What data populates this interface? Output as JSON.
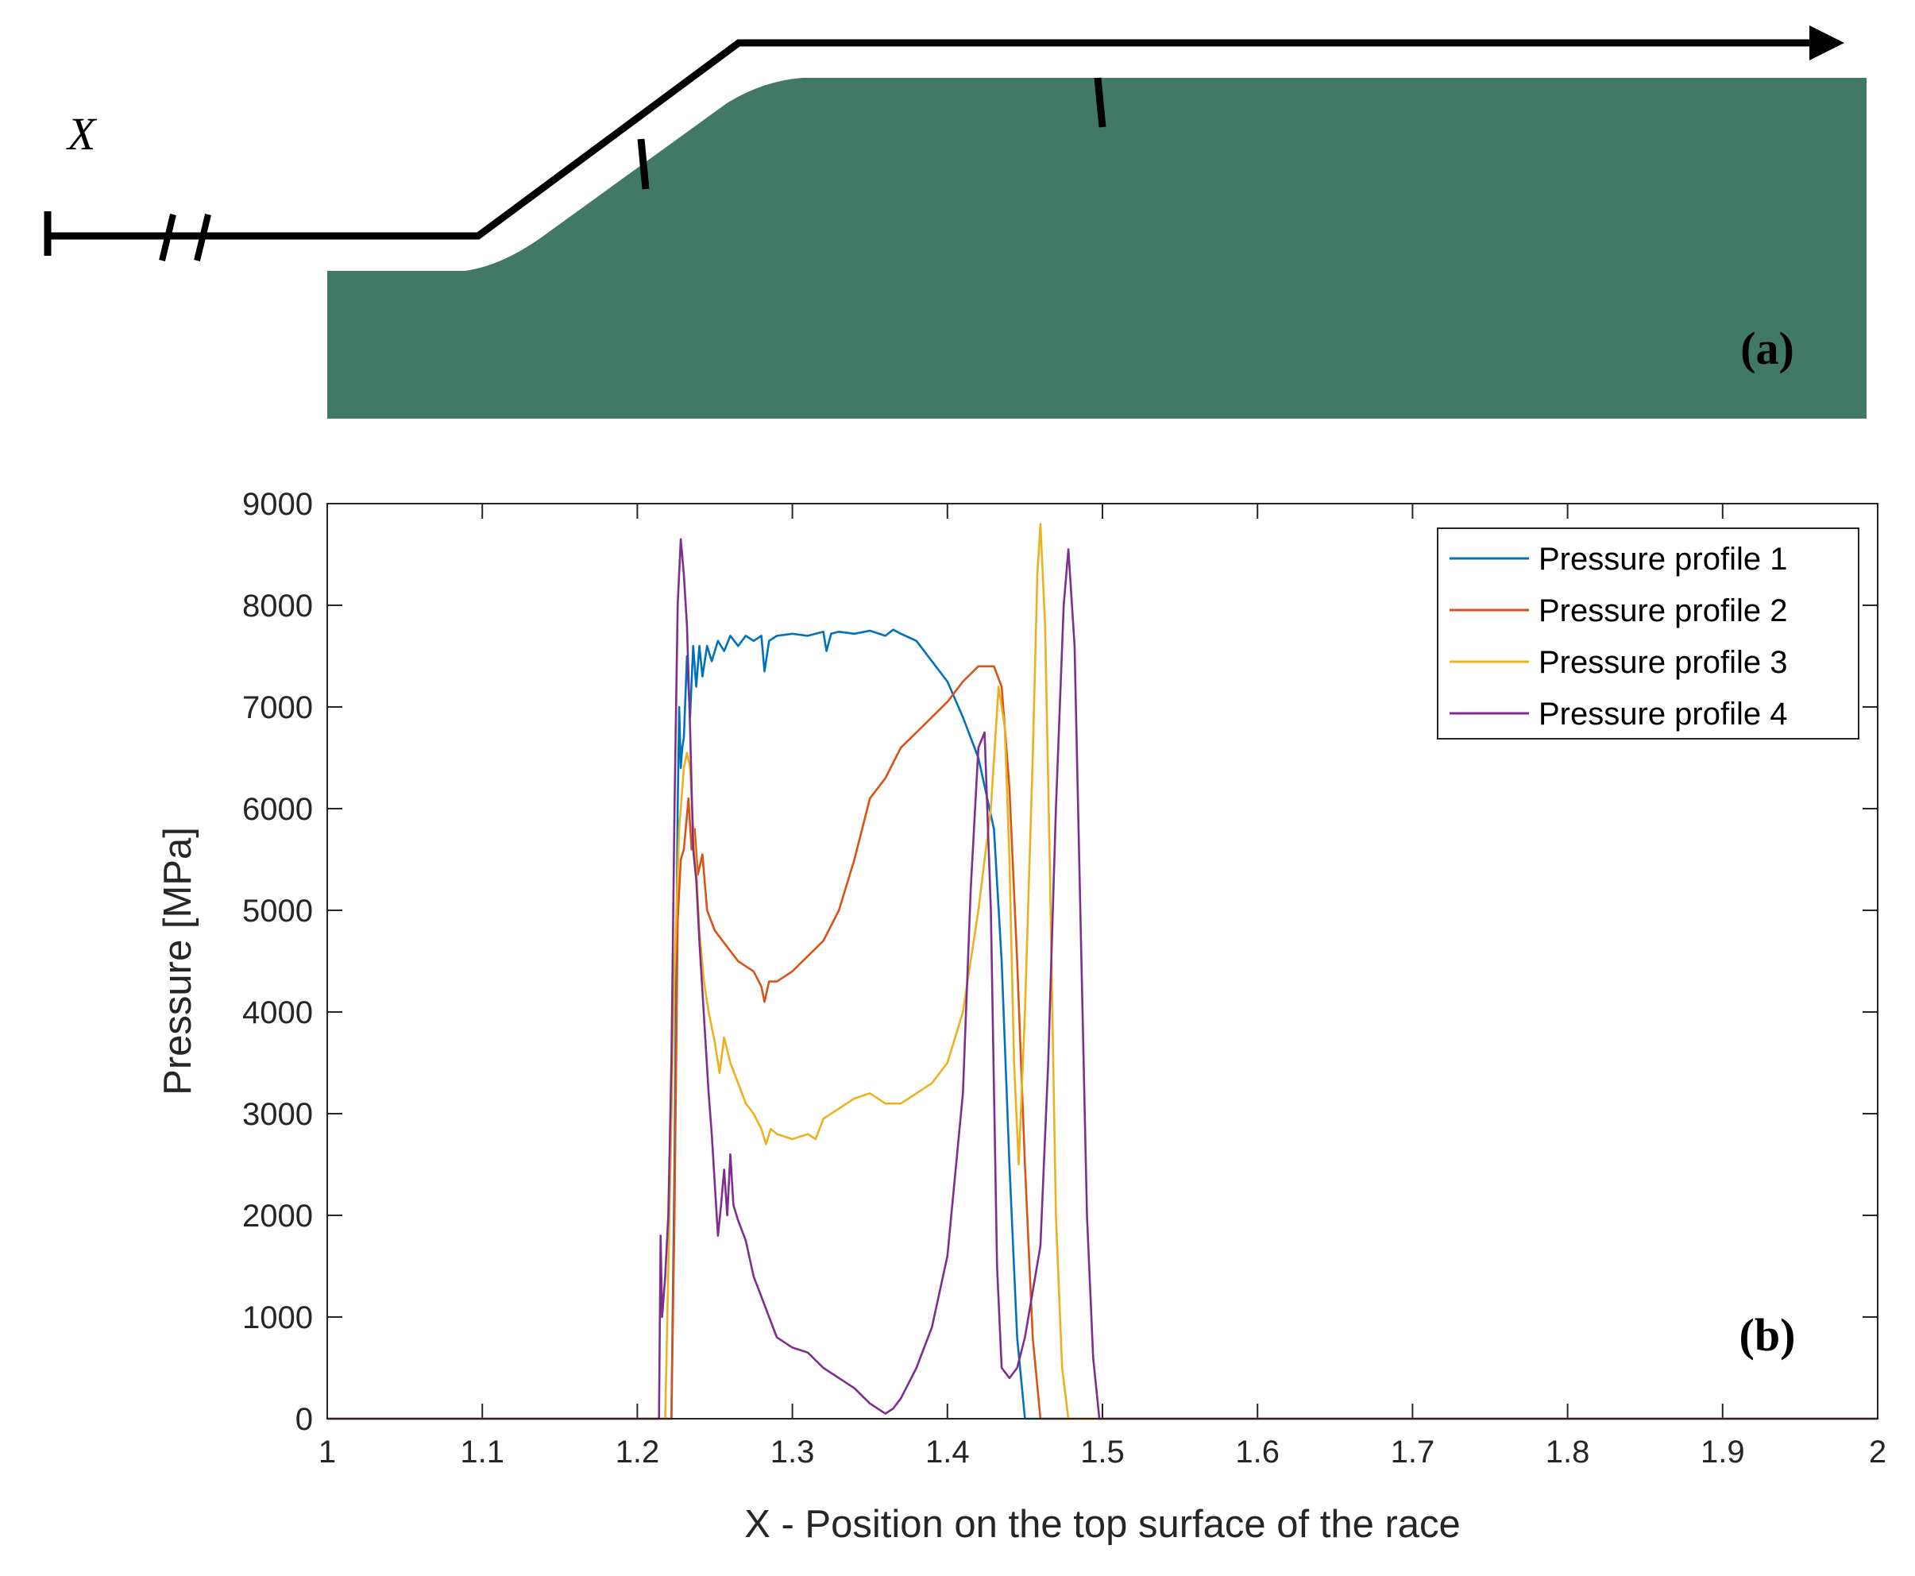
{
  "panel_a": {
    "axis_label": "X",
    "tag": "(a)",
    "colors": {
      "race": "#417866",
      "path": "#000000"
    }
  },
  "chart_data": {
    "type": "line",
    "tag": "(b)",
    "xlabel": "X - Position on the top surface of the race",
    "ylabel": "Pressure [MPa]",
    "xlim": [
      1,
      2
    ],
    "ylim": [
      0,
      9000
    ],
    "x_ticks": [
      "1",
      "1.1",
      "1.2",
      "1.3",
      "1.4",
      "1.5",
      "1.6",
      "1.7",
      "1.8",
      "1.9",
      "2"
    ],
    "y_ticks": [
      "0",
      "1000",
      "2000",
      "3000",
      "4000",
      "5000",
      "6000",
      "7000",
      "8000",
      "9000"
    ],
    "grid": false,
    "legend_position": "top-right",
    "series": [
      {
        "name": "Pressure profile 1",
        "color": "#0072BD",
        "points": [
          [
            1.0,
            0
          ],
          [
            1.222,
            0
          ],
          [
            1.224,
            2500
          ],
          [
            1.226,
            6000
          ],
          [
            1.227,
            7000
          ],
          [
            1.228,
            6400
          ],
          [
            1.229,
            6600
          ],
          [
            1.23,
            6700
          ],
          [
            1.232,
            7500
          ],
          [
            1.234,
            6900
          ],
          [
            1.236,
            7600
          ],
          [
            1.238,
            7200
          ],
          [
            1.24,
            7600
          ],
          [
            1.242,
            7300
          ],
          [
            1.245,
            7600
          ],
          [
            1.248,
            7450
          ],
          [
            1.252,
            7650
          ],
          [
            1.256,
            7550
          ],
          [
            1.26,
            7700
          ],
          [
            1.265,
            7600
          ],
          [
            1.27,
            7700
          ],
          [
            1.275,
            7650
          ],
          [
            1.28,
            7700
          ],
          [
            1.282,
            7350
          ],
          [
            1.285,
            7650
          ],
          [
            1.29,
            7700
          ],
          [
            1.3,
            7720
          ],
          [
            1.31,
            7700
          ],
          [
            1.32,
            7740
          ],
          [
            1.322,
            7550
          ],
          [
            1.325,
            7720
          ],
          [
            1.33,
            7740
          ],
          [
            1.34,
            7720
          ],
          [
            1.35,
            7750
          ],
          [
            1.36,
            7700
          ],
          [
            1.365,
            7760
          ],
          [
            1.37,
            7720
          ],
          [
            1.38,
            7650
          ],
          [
            1.39,
            7450
          ],
          [
            1.4,
            7250
          ],
          [
            1.41,
            6900
          ],
          [
            1.42,
            6500
          ],
          [
            1.43,
            5800
          ],
          [
            1.435,
            4500
          ],
          [
            1.44,
            2500
          ],
          [
            1.445,
            800
          ],
          [
            1.45,
            0
          ],
          [
            2.0,
            0
          ]
        ]
      },
      {
        "name": "Pressure profile 2",
        "color": "#D95319",
        "points": [
          [
            1.0,
            0
          ],
          [
            1.222,
            0
          ],
          [
            1.224,
            2000
          ],
          [
            1.226,
            4900
          ],
          [
            1.228,
            5500
          ],
          [
            1.23,
            5600
          ],
          [
            1.233,
            6100
          ],
          [
            1.235,
            5600
          ],
          [
            1.237,
            5800
          ],
          [
            1.239,
            5350
          ],
          [
            1.242,
            5550
          ],
          [
            1.245,
            5000
          ],
          [
            1.25,
            4800
          ],
          [
            1.255,
            4700
          ],
          [
            1.26,
            4600
          ],
          [
            1.265,
            4500
          ],
          [
            1.27,
            4450
          ],
          [
            1.275,
            4400
          ],
          [
            1.28,
            4250
          ],
          [
            1.282,
            4100
          ],
          [
            1.285,
            4300
          ],
          [
            1.29,
            4300
          ],
          [
            1.3,
            4400
          ],
          [
            1.31,
            4550
          ],
          [
            1.32,
            4700
          ],
          [
            1.33,
            5000
          ],
          [
            1.34,
            5500
          ],
          [
            1.35,
            6100
          ],
          [
            1.36,
            6300
          ],
          [
            1.37,
            6600
          ],
          [
            1.38,
            6750
          ],
          [
            1.39,
            6900
          ],
          [
            1.4,
            7050
          ],
          [
            1.41,
            7250
          ],
          [
            1.42,
            7400
          ],
          [
            1.43,
            7400
          ],
          [
            1.435,
            7200
          ],
          [
            1.44,
            6200
          ],
          [
            1.445,
            4500
          ],
          [
            1.45,
            2500
          ],
          [
            1.455,
            800
          ],
          [
            1.46,
            0
          ],
          [
            2.0,
            0
          ]
        ]
      },
      {
        "name": "Pressure profile 3",
        "color": "#EDB120",
        "points": [
          [
            1.0,
            0
          ],
          [
            1.218,
            0
          ],
          [
            1.221,
            2200
          ],
          [
            1.224,
            4400
          ],
          [
            1.227,
            5800
          ],
          [
            1.23,
            6400
          ],
          [
            1.232,
            6550
          ],
          [
            1.234,
            6400
          ],
          [
            1.236,
            5800
          ],
          [
            1.238,
            5400
          ],
          [
            1.24,
            4800
          ],
          [
            1.243,
            4300
          ],
          [
            1.246,
            4000
          ],
          [
            1.25,
            3700
          ],
          [
            1.253,
            3400
          ],
          [
            1.256,
            3750
          ],
          [
            1.26,
            3500
          ],
          [
            1.265,
            3300
          ],
          [
            1.27,
            3100
          ],
          [
            1.275,
            3000
          ],
          [
            1.28,
            2850
          ],
          [
            1.283,
            2700
          ],
          [
            1.286,
            2850
          ],
          [
            1.29,
            2800
          ],
          [
            1.3,
            2750
          ],
          [
            1.31,
            2800
          ],
          [
            1.315,
            2750
          ],
          [
            1.32,
            2950
          ],
          [
            1.33,
            3050
          ],
          [
            1.34,
            3150
          ],
          [
            1.35,
            3200
          ],
          [
            1.36,
            3100
          ],
          [
            1.37,
            3100
          ],
          [
            1.38,
            3200
          ],
          [
            1.39,
            3300
          ],
          [
            1.4,
            3500
          ],
          [
            1.41,
            4000
          ],
          [
            1.42,
            5000
          ],
          [
            1.428,
            6000
          ],
          [
            1.433,
            7200
          ],
          [
            1.437,
            6800
          ],
          [
            1.44,
            5500
          ],
          [
            1.443,
            3500
          ],
          [
            1.446,
            2500
          ],
          [
            1.45,
            4000
          ],
          [
            1.455,
            6500
          ],
          [
            1.458,
            8300
          ],
          [
            1.46,
            8800
          ],
          [
            1.463,
            7800
          ],
          [
            1.466,
            5500
          ],
          [
            1.47,
            2000
          ],
          [
            1.474,
            500
          ],
          [
            1.478,
            0
          ],
          [
            2.0,
            0
          ]
        ]
      },
      {
        "name": "Pressure profile 4",
        "color": "#7E2F8E",
        "points": [
          [
            1.0,
            0
          ],
          [
            1.214,
            0
          ],
          [
            1.215,
            1800
          ],
          [
            1.216,
            1000
          ],
          [
            1.218,
            1400
          ],
          [
            1.22,
            2000
          ],
          [
            1.222,
            3500
          ],
          [
            1.224,
            6000
          ],
          [
            1.226,
            8000
          ],
          [
            1.228,
            8650
          ],
          [
            1.23,
            8300
          ],
          [
            1.232,
            7800
          ],
          [
            1.234,
            6800
          ],
          [
            1.236,
            5600
          ],
          [
            1.238,
            5300
          ],
          [
            1.24,
            4700
          ],
          [
            1.242,
            4200
          ],
          [
            1.244,
            3700
          ],
          [
            1.246,
            3200
          ],
          [
            1.248,
            2800
          ],
          [
            1.25,
            2300
          ],
          [
            1.252,
            1800
          ],
          [
            1.254,
            2100
          ],
          [
            1.256,
            2450
          ],
          [
            1.258,
            2000
          ],
          [
            1.26,
            2600
          ],
          [
            1.262,
            2100
          ],
          [
            1.265,
            1950
          ],
          [
            1.27,
            1750
          ],
          [
            1.275,
            1400
          ],
          [
            1.28,
            1200
          ],
          [
            1.285,
            1000
          ],
          [
            1.29,
            800
          ],
          [
            1.3,
            700
          ],
          [
            1.31,
            650
          ],
          [
            1.32,
            500
          ],
          [
            1.33,
            400
          ],
          [
            1.34,
            300
          ],
          [
            1.35,
            150
          ],
          [
            1.36,
            50
          ],
          [
            1.365,
            100
          ],
          [
            1.37,
            200
          ],
          [
            1.38,
            500
          ],
          [
            1.39,
            900
          ],
          [
            1.4,
            1600
          ],
          [
            1.41,
            3200
          ],
          [
            1.415,
            5200
          ],
          [
            1.42,
            6600
          ],
          [
            1.424,
            6750
          ],
          [
            1.428,
            5000
          ],
          [
            1.432,
            1500
          ],
          [
            1.435,
            500
          ],
          [
            1.44,
            400
          ],
          [
            1.445,
            500
          ],
          [
            1.45,
            800
          ],
          [
            1.46,
            1700
          ],
          [
            1.465,
            3500
          ],
          [
            1.47,
            6000
          ],
          [
            1.475,
            8000
          ],
          [
            1.478,
            8550
          ],
          [
            1.482,
            7600
          ],
          [
            1.486,
            4800
          ],
          [
            1.49,
            2000
          ],
          [
            1.494,
            600
          ],
          [
            1.498,
            0
          ],
          [
            2.0,
            0
          ]
        ]
      }
    ]
  }
}
